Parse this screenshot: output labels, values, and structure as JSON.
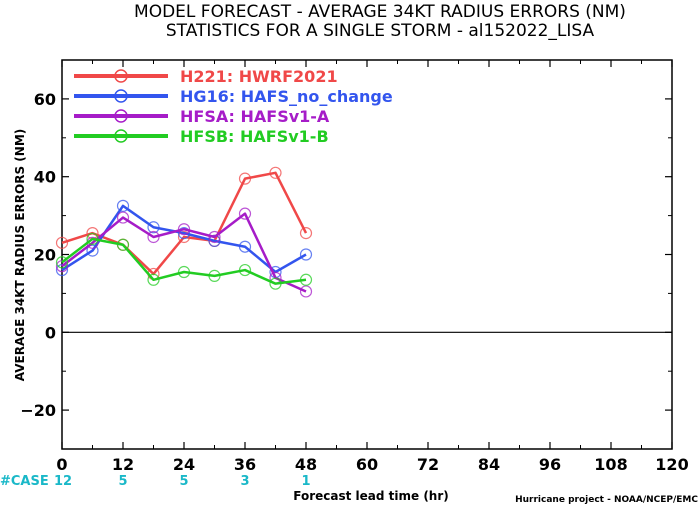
{
  "chart_data": {
    "type": "line",
    "title": "MODEL FORECAST - AVERAGE 34KT RADIUS ERRORS (NM)",
    "subtitle": "STATISTICS FOR A SINGLE STORM - al152022_LISA",
    "xlabel": "Forecast lead time (hr)",
    "ylabel": "AVERAGE 34KT RADIUS ERRORS (NM)",
    "xlim": [
      0,
      120
    ],
    "ylim": [
      -30,
      70
    ],
    "xticks": [
      0,
      12,
      24,
      36,
      48,
      60,
      72,
      84,
      96,
      108,
      120
    ],
    "yticks": [
      -20,
      0,
      20,
      40,
      60
    ],
    "zero_line": true,
    "grid": false,
    "legend_position": "top-left",
    "case_label": "#CASE",
    "cases": [
      {
        "x": 0,
        "n": "12"
      },
      {
        "x": 12,
        "n": "5"
      },
      {
        "x": 24,
        "n": "5"
      },
      {
        "x": 36,
        "n": "3"
      },
      {
        "x": 48,
        "n": "1"
      }
    ],
    "credit": "Hurricane project - NOAA/NCEP/EMC",
    "series": [
      {
        "name": "H221: HWRF2021",
        "color": "#f04848",
        "x": [
          0,
          6,
          12,
          18,
          24,
          30,
          36,
          42,
          48
        ],
        "y": [
          23,
          25.5,
          22.5,
          15,
          24.5,
          23.5,
          39.5,
          41,
          25.5
        ]
      },
      {
        "name": "HG16: HAFS_no_change",
        "color": "#3355ee",
        "x": [
          0,
          6,
          12,
          18,
          24,
          30,
          36,
          42,
          48
        ],
        "y": [
          16,
          21,
          32.5,
          27,
          25.5,
          23.5,
          22,
          15.5,
          20
        ]
      },
      {
        "name": "HFSA: HAFSv1-A",
        "color": "#a61cc8",
        "x": [
          0,
          6,
          12,
          18,
          24,
          30,
          36,
          42,
          48
        ],
        "y": [
          17,
          23,
          29.5,
          24.5,
          26.5,
          24.5,
          30.5,
          14,
          10.5
        ]
      },
      {
        "name": "HFSB: HAFSv1-B",
        "color": "#22cc22",
        "x": [
          0,
          6,
          12,
          18,
          24,
          30,
          36,
          42,
          48
        ],
        "y": [
          18,
          24,
          22.5,
          13.5,
          15.5,
          14.5,
          16,
          12.5,
          13.5
        ]
      }
    ]
  }
}
